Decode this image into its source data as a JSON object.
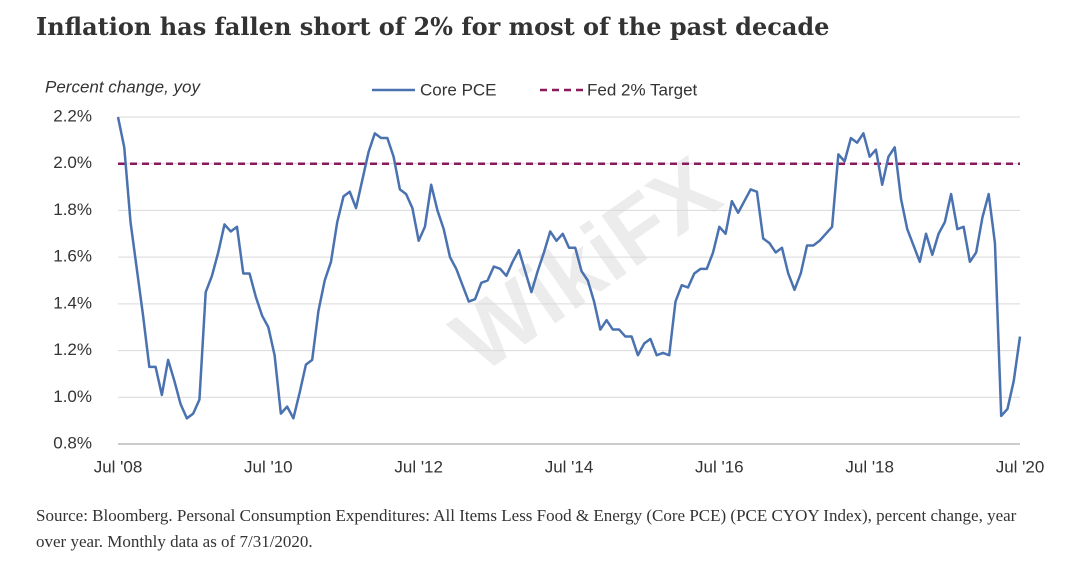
{
  "chart_data": {
    "type": "line",
    "title": "Inflation has fallen short of 2% for most of the past decade",
    "y_label": "Percent change, yoy",
    "source": "Source: Bloomberg. Personal Consumption Expenditures: All Items Less Food & Energy (Core PCE) (PCE CYOY Index), percent change, year over year. Monthly data as of 7/31/2020.",
    "watermark": "WikiFX",
    "categories": [
      "Jul '08",
      null,
      null,
      null,
      null,
      null,
      null,
      null,
      null,
      null,
      null,
      null,
      null,
      null,
      null,
      null,
      null,
      null,
      null,
      null,
      null,
      null,
      null,
      null,
      "Jul '10",
      null,
      null,
      null,
      null,
      null,
      null,
      null,
      null,
      null,
      null,
      null,
      null,
      null,
      null,
      null,
      null,
      null,
      null,
      null,
      null,
      null,
      null,
      null,
      "Jul '12",
      null,
      null,
      null,
      null,
      null,
      null,
      null,
      null,
      null,
      null,
      null,
      null,
      null,
      null,
      null,
      null,
      null,
      null,
      null,
      null,
      null,
      null,
      null,
      "Jul '14",
      null,
      null,
      null,
      null,
      null,
      null,
      null,
      null,
      null,
      null,
      null,
      null,
      null,
      null,
      null,
      null,
      null,
      null,
      null,
      null,
      null,
      null,
      null,
      "Jul '16",
      null,
      null,
      null,
      null,
      null,
      null,
      null,
      null,
      null,
      null,
      null,
      null,
      null,
      null,
      null,
      null,
      null,
      null,
      null,
      null,
      null,
      null,
      null,
      "Jul '18",
      null,
      null,
      null,
      null,
      null,
      null,
      null,
      null,
      null,
      null,
      null,
      null,
      null,
      null,
      null,
      null,
      null,
      null,
      null,
      null,
      null,
      null,
      null,
      "Jul '20"
    ],
    "series": [
      {
        "name": "Core PCE",
        "color": "#4a72b0",
        "values": [
          2.2,
          2.07,
          1.75,
          1.55,
          1.35,
          1.13,
          1.13,
          1.01,
          1.16,
          1.07,
          0.97,
          0.91,
          0.93,
          0.99,
          1.45,
          1.52,
          1.62,
          1.74,
          1.71,
          1.73,
          1.53,
          1.53,
          1.43,
          1.35,
          1.3,
          1.18,
          0.93,
          0.96,
          0.91,
          1.02,
          1.14,
          1.16,
          1.37,
          1.5,
          1.58,
          1.75,
          1.86,
          1.88,
          1.81,
          1.93,
          2.05,
          2.13,
          2.11,
          2.11,
          2.03,
          1.89,
          1.87,
          1.81,
          1.67,
          1.73,
          1.91,
          1.8,
          1.72,
          1.6,
          1.55,
          1.48,
          1.41,
          1.42,
          1.49,
          1.5,
          1.56,
          1.55,
          1.52,
          1.58,
          1.63,
          1.54,
          1.45,
          1.54,
          1.62,
          1.71,
          1.67,
          1.7,
          1.64,
          1.64,
          1.54,
          1.5,
          1.41,
          1.29,
          1.33,
          1.29,
          1.29,
          1.26,
          1.26,
          1.18,
          1.23,
          1.25,
          1.18,
          1.19,
          1.18,
          1.41,
          1.48,
          1.47,
          1.53,
          1.55,
          1.55,
          1.62,
          1.73,
          1.7,
          1.84,
          1.79,
          1.84,
          1.89,
          1.88,
          1.68,
          1.66,
          1.62,
          1.64,
          1.53,
          1.46,
          1.53,
          1.65,
          1.65,
          1.67,
          1.7,
          1.73,
          2.04,
          2.01,
          2.11,
          2.09,
          2.13,
          2.03,
          2.06,
          1.91,
          2.03,
          2.07,
          1.85,
          1.72,
          1.65,
          1.58,
          1.7,
          1.61,
          1.7,
          1.75,
          1.87,
          1.72,
          1.73,
          1.58,
          1.62,
          1.77,
          1.87,
          1.66,
          0.92,
          0.95,
          1.07,
          1.26
        ]
      }
    ],
    "reference_lines": [
      {
        "name": "Fed 2% Target",
        "value": 2,
        "color": "#8b1a5c"
      }
    ],
    "ylim": [
      0.8,
      2.2
    ],
    "yticks": [
      {
        "value": 0.8,
        "label": "0.8%"
      },
      {
        "value": 1.0,
        "label": "1.0%"
      },
      {
        "value": 1.2,
        "label": "1.2%"
      },
      {
        "value": 1.4,
        "label": "1.4%"
      },
      {
        "value": 1.6,
        "label": "1.6%"
      },
      {
        "value": 1.8,
        "label": "1.8%"
      },
      {
        "value": 2.0,
        "label": "2.0%"
      },
      {
        "value": 2.2,
        "label": "2.2%"
      }
    ],
    "grid": true
  }
}
